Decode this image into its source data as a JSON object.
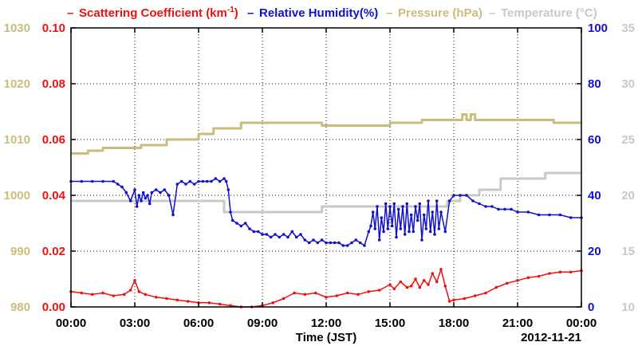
{
  "chart_data": {
    "type": "line",
    "legend_placement": "top",
    "x_axis": {
      "label": "Time (JST)",
      "ticks": [
        "00:00",
        "03:00",
        "06:00",
        "09:00",
        "12:00",
        "15:00",
        "18:00",
        "21:00",
        "00:00"
      ],
      "range_hours": [
        0,
        24
      ],
      "date": "2012-11-21"
    },
    "grid": "dotted",
    "axes": {
      "pressure": {
        "range": [
          980,
          1030
        ],
        "ticks": [
          "980",
          "990",
          "1000",
          "1010",
          "1020",
          "1030"
        ],
        "color": "#c8bd7c"
      },
      "scattering": {
        "range": [
          0,
          0.1
        ],
        "ticks": [
          "0.00",
          "0.02",
          "0.04",
          "0.06",
          "0.08",
          "0.10"
        ],
        "color": "#ee1111"
      },
      "humidity": {
        "range": [
          0,
          100
        ],
        "ticks": [
          "0",
          "20",
          "40",
          "60",
          "80",
          "100"
        ],
        "color": "#1111cc"
      },
      "temperature": {
        "range": [
          10,
          35
        ],
        "ticks": [
          "10",
          "15",
          "20",
          "25",
          "30",
          "35"
        ],
        "color": "#c8c8c8"
      }
    },
    "legend": {
      "scattering": {
        "dash": "–",
        "text": "Scattering Coefficient (km",
        "sup": "-1",
        "close": ")"
      },
      "humidity": {
        "dash": "–",
        "text": "Relative Humidity(%)"
      },
      "pressure": {
        "dash": "–",
        "text": "Pressure (hPa)"
      },
      "temperature": {
        "dash": "–",
        "text": "Temperature (°C)"
      }
    },
    "series": [
      {
        "name": "Relative Humidity(%)",
        "axis": "humidity",
        "color": "#1111cc",
        "markers": true,
        "x": [
          0,
          0.5,
          1,
          1.5,
          2,
          2.2,
          2.4,
          2.6,
          2.8,
          3,
          3.1,
          3.2,
          3.3,
          3.4,
          3.5,
          3.6,
          3.7,
          3.8,
          4,
          4.2,
          4.4,
          4.6,
          4.8,
          5,
          5.2,
          5.4,
          5.6,
          5.8,
          6,
          6.2,
          6.4,
          6.6,
          6.8,
          7,
          7.2,
          7.3,
          7.4,
          7.5,
          7.6,
          7.8,
          8,
          8.2,
          8.4,
          8.6,
          8.8,
          9,
          9.2,
          9.4,
          9.6,
          9.8,
          10,
          10.2,
          10.4,
          10.6,
          10.8,
          11,
          11.2,
          11.4,
          11.6,
          11.8,
          12,
          12.2,
          12.4,
          12.6,
          12.8,
          13,
          13.2,
          13.4,
          13.6,
          13.8,
          14,
          14.1,
          14.2,
          14.3,
          14.4,
          14.5,
          14.6,
          14.7,
          14.8,
          14.9,
          15,
          15.1,
          15.2,
          15.3,
          15.4,
          15.5,
          15.6,
          15.7,
          15.8,
          15.9,
          16,
          16.1,
          16.2,
          16.3,
          16.4,
          16.5,
          16.6,
          16.7,
          16.8,
          16.9,
          17,
          17.1,
          17.2,
          17.3,
          17.4,
          17.6,
          17.8,
          18,
          18.3,
          18.6,
          18.9,
          19.2,
          19.5,
          19.8,
          20.1,
          20.4,
          20.7,
          21,
          21.5,
          22,
          22.5,
          23,
          23.5,
          24
        ],
        "y": [
          45,
          45,
          45,
          45,
          45,
          44,
          43,
          41,
          38,
          42,
          36,
          40,
          38,
          41,
          39,
          40,
          37,
          41,
          42,
          41,
          42,
          40,
          33,
          44,
          45,
          44,
          45,
          44,
          45,
          45,
          45,
          45,
          46,
          45,
          46,
          45,
          42,
          34,
          31,
          30,
          29,
          30,
          28,
          27,
          27,
          26,
          26,
          25,
          26,
          25,
          26,
          25,
          27,
          25,
          26,
          24,
          23,
          24,
          23,
          24,
          23,
          23,
          23,
          23,
          22,
          22,
          23,
          24,
          23,
          22,
          27,
          29,
          34,
          28,
          36,
          24,
          32,
          27,
          37,
          28,
          36,
          29,
          37,
          25,
          35,
          28,
          36,
          26,
          37,
          27,
          33,
          27,
          36,
          31,
          37,
          24,
          33,
          28,
          38,
          27,
          34,
          26,
          38,
          28,
          34,
          27,
          38,
          40,
          40,
          40,
          38,
          37,
          36,
          36,
          35,
          35,
          35,
          34,
          34,
          33,
          33,
          33,
          32,
          32
        ],
        "values": [
          45,
          45,
          45,
          45,
          45,
          44,
          43,
          41,
          38,
          42,
          36,
          40,
          38,
          41,
          39,
          40,
          37,
          41,
          42,
          41,
          42,
          40,
          33,
          44,
          45,
          44,
          45,
          44,
          45,
          45,
          45,
          45,
          46,
          45,
          46,
          45,
          42,
          34,
          31,
          30,
          29,
          30,
          28,
          27,
          27,
          26,
          26,
          25,
          26,
          25,
          26,
          25,
          27,
          25,
          26,
          24,
          23,
          24,
          23,
          24,
          23,
          23,
          23,
          23,
          22,
          22,
          23,
          24,
          23,
          22,
          27,
          29,
          34,
          28,
          36,
          24,
          32,
          27,
          37,
          28,
          36,
          29,
          37,
          25,
          35,
          28,
          36,
          26,
          37,
          27,
          33,
          27,
          36,
          31,
          37,
          24,
          33,
          28,
          38,
          27,
          34,
          26,
          38,
          28,
          34,
          27,
          38,
          40,
          40,
          40,
          38,
          37,
          36,
          36,
          35,
          35,
          35,
          34,
          34,
          33,
          33,
          33,
          32,
          32
        ]
      },
      {
        "name": "Scattering Coefficient (km-1)",
        "axis": "scattering",
        "color": "#ee1111",
        "markers": true,
        "x": [
          0,
          0.5,
          1,
          1.5,
          2,
          2.5,
          2.8,
          3,
          3.2,
          3.5,
          4,
          4.5,
          5,
          5.5,
          6,
          6.5,
          7,
          7.5,
          8,
          8.5,
          9,
          9.5,
          10,
          10.5,
          11,
          11.5,
          12,
          12.5,
          13,
          13.5,
          14,
          14.5,
          15,
          15.2,
          15.5,
          15.8,
          16,
          16.2,
          16.4,
          16.6,
          16.8,
          17,
          17.2,
          17.4,
          17.6,
          17.8,
          18,
          18.5,
          19,
          19.5,
          20,
          20.5,
          21,
          21.5,
          22,
          22.5,
          23,
          23.5,
          24
        ],
        "y": [
          0.0055,
          0.005,
          0.0045,
          0.005,
          0.004,
          0.0045,
          0.006,
          0.0095,
          0.0055,
          0.0045,
          0.0035,
          0.003,
          0.0025,
          0.002,
          0.0015,
          0.0015,
          0.001,
          0.0005,
          0.0,
          0.0,
          0.0005,
          0.0015,
          0.003,
          0.005,
          0.0045,
          0.005,
          0.0035,
          0.004,
          0.005,
          0.0045,
          0.0055,
          0.006,
          0.008,
          0.0065,
          0.009,
          0.007,
          0.0075,
          0.01,
          0.007,
          0.0095,
          0.008,
          0.012,
          0.009,
          0.0135,
          0.0075,
          0.002,
          0.0025,
          0.003,
          0.004,
          0.005,
          0.007,
          0.0085,
          0.0095,
          0.0105,
          0.011,
          0.012,
          0.0125,
          0.0125,
          0.013
        ],
        "values": [
          0.0055,
          0.005,
          0.0045,
          0.005,
          0.004,
          0.0045,
          0.006,
          0.0095,
          0.0055,
          0.0045,
          0.0035,
          0.003,
          0.0025,
          0.002,
          0.0015,
          0.0015,
          0.001,
          0.0005,
          0.0,
          0.0,
          0.0005,
          0.0015,
          0.003,
          0.005,
          0.0045,
          0.005,
          0.0035,
          0.004,
          0.005,
          0.0045,
          0.0055,
          0.006,
          0.008,
          0.0065,
          0.009,
          0.007,
          0.0075,
          0.01,
          0.007,
          0.0095,
          0.008,
          0.012,
          0.009,
          0.0135,
          0.0075,
          0.002,
          0.0025,
          0.003,
          0.004,
          0.005,
          0.007,
          0.0085,
          0.0095,
          0.0105,
          0.011,
          0.012,
          0.0125,
          0.0125,
          0.013
        ]
      },
      {
        "name": "Pressure (hPa)",
        "axis": "pressure",
        "color": "#c8bd7c",
        "markers": false,
        "step": true,
        "x": [
          0,
          0.8,
          1.5,
          3.3,
          4.5,
          6.0,
          6.7,
          8.0,
          9.5,
          11.8,
          15.0,
          16.5,
          18.4,
          18.6,
          18.8,
          19.0,
          22.7,
          24
        ],
        "y": [
          1007.5,
          1008,
          1008.5,
          1009,
          1010,
          1011,
          1012,
          1013,
          1013,
          1012.5,
          1013,
          1013.5,
          1014.5,
          1013.5,
          1014.5,
          1013.5,
          1013,
          1013
        ],
        "values": [
          1007.5,
          1008,
          1008.5,
          1009,
          1010,
          1011,
          1012,
          1013,
          1013,
          1012.5,
          1013,
          1013.5,
          1014.5,
          1013.5,
          1014.5,
          1013.5,
          1013,
          1013
        ]
      },
      {
        "name": "Temperature (°C)",
        "axis": "temperature",
        "color": "#c8c8c8",
        "markers": false,
        "step": true,
        "x": [
          0,
          7.2,
          8.5,
          11.8,
          17.7,
          18.3,
          19.2,
          20.2,
          22.3,
          24
        ],
        "y": [
          19.5,
          18.5,
          18.5,
          19,
          19.5,
          20,
          20.5,
          21.5,
          22,
          22
        ],
        "values": [
          19.5,
          18.5,
          18.5,
          19,
          19.5,
          20,
          20.5,
          21.5,
          22,
          22
        ]
      }
    ]
  }
}
